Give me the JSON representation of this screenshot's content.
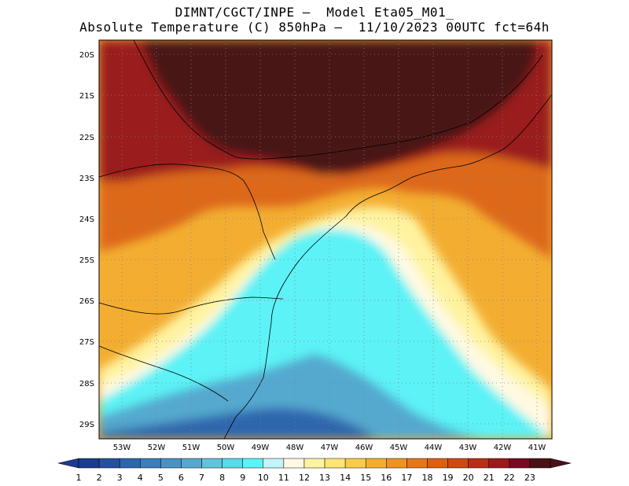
{
  "header": {
    "line1": "DIMNT/CGCT/INPE –  Model Eta05_M01_",
    "line2": "Absolute Temperature (C) 850hPa –  11/10/2023 00UTC fct=64h"
  },
  "axes": {
    "lat_labels": [
      "20S",
      "21S",
      "22S",
      "23S",
      "24S",
      "25S",
      "26S",
      "27S",
      "28S",
      "29S"
    ],
    "lon_labels": [
      "53W",
      "52W",
      "51W",
      "50W",
      "49W",
      "48W",
      "47W",
      "46W",
      "45W",
      "44W",
      "43W",
      "42W",
      "41W"
    ],
    "lat_range": [
      -29.4,
      -19.7
    ],
    "lon_range": [
      -53.6,
      -40.6
    ],
    "grid": "dotted"
  },
  "colorbar": {
    "values": [
      "1",
      "2",
      "3",
      "4",
      "5",
      "6",
      "7",
      "8",
      "9",
      "10",
      "11",
      "12",
      "13",
      "14",
      "15",
      "16",
      "17",
      "18",
      "19",
      "20",
      "21",
      "22",
      "23"
    ],
    "colors": [
      "#1a3b8f",
      "#24509f",
      "#2d66ad",
      "#3a7ebb",
      "#4793c6",
      "#55a9cf",
      "#62c3dc",
      "#5ad9e8",
      "#5cf2f6",
      "#c2f4f8",
      "#fff9e3",
      "#fff3a0",
      "#fce478",
      "#f9cb4c",
      "#f3ae32",
      "#ec9323",
      "#e47818",
      "#da6014",
      "#cc4a14",
      "#b73015",
      "#9a1a1c",
      "#7a0a22",
      "#4a1214"
    ]
  },
  "regions": [
    {
      "name": "hot-north",
      "color": "#4a1214"
    },
    {
      "name": "warm-band",
      "color": "#cc4a14"
    },
    {
      "name": "mid-band",
      "color": "#f3ae32"
    },
    {
      "name": "light-band",
      "color": "#fff3a0"
    },
    {
      "name": "cool-ocean",
      "color": "#5cf2f6"
    },
    {
      "name": "cold-south",
      "color": "#3a7ebb"
    }
  ]
}
